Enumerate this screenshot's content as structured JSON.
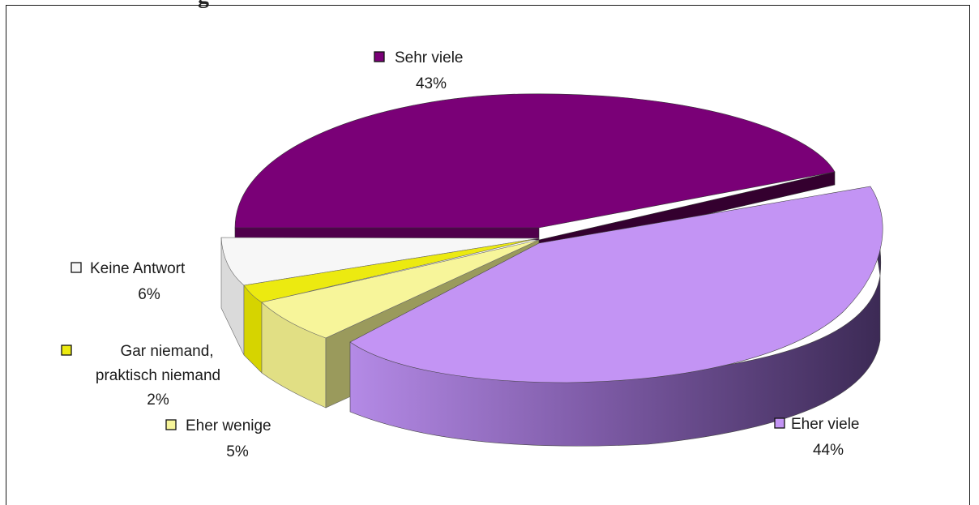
{
  "chart_data": {
    "type": "pie",
    "three_d": true,
    "title": "",
    "slices": [
      {
        "label": "Sehr viele",
        "percent_label": "43%",
        "value": 43,
        "color": "#7a0077"
      },
      {
        "label": "Eher viele",
        "percent_label": "44%",
        "value": 44,
        "color": "#c394f4"
      },
      {
        "label": "Eher wenige",
        "percent_label": "5%",
        "value": 5,
        "color": "#f7f59a"
      },
      {
        "label": "Gar niemand,",
        "label_line2": "praktisch niemand",
        "percent_label": "2%",
        "value": 2,
        "color": "#ecea10"
      },
      {
        "label": "Keine Antwort",
        "percent_label": "6%",
        "value": 6,
        "color": "#f7f7f7"
      }
    ],
    "legend": "labels-beside-slices",
    "grid": false
  }
}
